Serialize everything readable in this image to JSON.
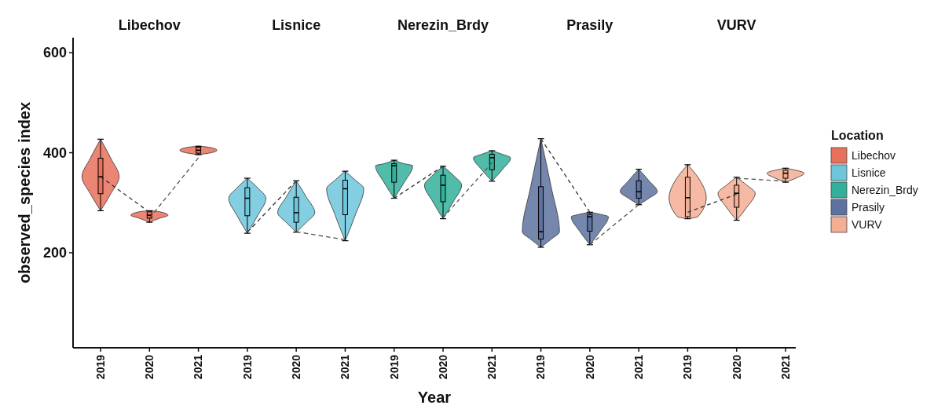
{
  "chart_data": {
    "type": "box",
    "xlabel": "Year",
    "ylabel": "observed_species index",
    "legend_title": "Location",
    "legend": "right",
    "grid": false,
    "marker": "none",
    "categories": [
      "2019",
      "2020",
      "2021",
      "2019",
      "2020",
      "2021",
      "2019",
      "2020",
      "2021",
      "2019",
      "2020",
      "2021",
      "2019",
      "2020",
      "2021"
    ],
    "ylim": [
      10,
      630
    ],
    "yticks": [
      200,
      400,
      600
    ],
    "annotations": [
      "Libechov",
      "Lisnice",
      "Nerezin_Brdy",
      "Prasily",
      "VURV"
    ],
    "series": [
      {
        "name": "Libechov",
        "color": "#e8705c",
        "boxes": [
          {
            "low": 284,
            "q1": 318,
            "median": 352,
            "q3": 389,
            "high": 427
          },
          {
            "low": 261,
            "q1": 269,
            "median": 275,
            "q3": 282,
            "high": 284
          },
          {
            "low": 396,
            "q1": 399,
            "median": 405,
            "q3": 411,
            "high": 413
          },
          null,
          null,
          null,
          null,
          null,
          null,
          null,
          null,
          null,
          null,
          null,
          null
        ]
      },
      {
        "name": "Lisnice",
        "color": "#6ec6dc",
        "boxes": [
          null,
          null,
          null,
          {
            "low": 239,
            "q1": 274,
            "median": 309,
            "q3": 330,
            "high": 349
          },
          {
            "low": 241,
            "q1": 261,
            "median": 280,
            "q3": 311,
            "high": 344
          },
          {
            "low": 224,
            "q1": 276,
            "median": 328,
            "q3": 345,
            "high": 363
          },
          null,
          null,
          null,
          null,
          null,
          null,
          null,
          null,
          null
        ]
      },
      {
        "name": "Nerezin_Brdy",
        "color": "#33b09a",
        "boxes": [
          null,
          null,
          null,
          null,
          null,
          null,
          {
            "low": 309,
            "q1": 341,
            "median": 374,
            "q3": 378,
            "high": 385
          },
          {
            "low": 268,
            "q1": 302,
            "median": 335,
            "q3": 355,
            "high": 373
          },
          {
            "low": 343,
            "q1": 366,
            "median": 390,
            "q3": 397,
            "high": 404
          },
          null,
          null,
          null,
          null,
          null,
          null
        ]
      },
      {
        "name": "Prasily",
        "color": "#5e72a0",
        "boxes": [
          null,
          null,
          null,
          null,
          null,
          null,
          null,
          null,
          null,
          {
            "low": 211,
            "q1": 227,
            "median": 242,
            "q3": 332,
            "high": 428
          },
          {
            "low": 216,
            "q1": 243,
            "median": 272,
            "q3": 277,
            "high": 281
          },
          {
            "low": 296,
            "q1": 309,
            "median": 322,
            "q3": 344,
            "high": 367
          },
          null,
          null,
          null
        ]
      },
      {
        "name": "VURV",
        "color": "#f4ae94",
        "boxes": [
          null,
          null,
          null,
          null,
          null,
          null,
          null,
          null,
          null,
          null,
          null,
          null,
          {
            "low": 268,
            "q1": 272,
            "median": 310,
            "q3": 351,
            "high": 376
          },
          {
            "low": 265,
            "q1": 291,
            "median": 319,
            "q3": 335,
            "high": 351
          },
          {
            "low": 341,
            "q1": 349,
            "median": 359,
            "q3": 365,
            "high": 369
          }
        ]
      },
      {
        "type": "line",
        "color": "#333333",
        "line_style": "dashed",
        "values": [
          352,
          281,
          null,
          null,
          null,
          null,
          null,
          null,
          null,
          null,
          null,
          null,
          null,
          null,
          null
        ]
      },
      {
        "type": "line",
        "color": "#555555",
        "line_style": "dashed",
        "values": [
          null,
          269,
          390,
          null,
          null,
          null,
          null,
          null,
          null,
          null,
          null,
          null,
          null,
          null,
          null
        ]
      },
      {
        "type": "line",
        "color": "#333333",
        "line_style": "dashed",
        "values": [
          null,
          null,
          null,
          241,
          344,
          null,
          null,
          null,
          null,
          null,
          null,
          null,
          null,
          null,
          null
        ]
      },
      {
        "type": "line",
        "color": "#555555",
        "line_style": "dashed",
        "values": [
          null,
          null,
          null,
          null,
          242,
          226,
          null,
          null,
          null,
          null,
          null,
          null,
          null,
          null,
          null
        ]
      },
      {
        "type": "line",
        "color": "#333333",
        "line_style": "dashed",
        "values": [
          null,
          null,
          null,
          null,
          null,
          null,
          309,
          373,
          null,
          null,
          null,
          null,
          null,
          null,
          null
        ]
      },
      {
        "type": "line",
        "color": "#555555",
        "line_style": "dashed",
        "values": [
          null,
          null,
          null,
          null,
          null,
          null,
          null,
          270,
          380,
          null,
          null,
          null,
          null,
          null,
          null
        ]
      },
      {
        "type": "line",
        "color": "#333333",
        "line_style": "dashed",
        "values": [
          null,
          null,
          null,
          null,
          null,
          null,
          null,
          null,
          null,
          428,
          281,
          null,
          null,
          null,
          null
        ]
      },
      {
        "type": "line",
        "color": "#555555",
        "line_style": "dashed",
        "values": [
          null,
          null,
          null,
          null,
          null,
          null,
          null,
          null,
          null,
          null,
          216,
          296,
          null,
          null,
          null
        ]
      },
      {
        "type": "line",
        "color": "#333333",
        "line_style": "dashed",
        "values": [
          null,
          null,
          null,
          null,
          null,
          null,
          null,
          null,
          null,
          null,
          null,
          null,
          281,
          317,
          null
        ]
      },
      {
        "type": "line",
        "color": "#555555",
        "line_style": "dashed",
        "values": [
          null,
          null,
          null,
          null,
          null,
          null,
          null,
          null,
          null,
          null,
          null,
          null,
          null,
          349,
          343
        ]
      }
    ]
  }
}
